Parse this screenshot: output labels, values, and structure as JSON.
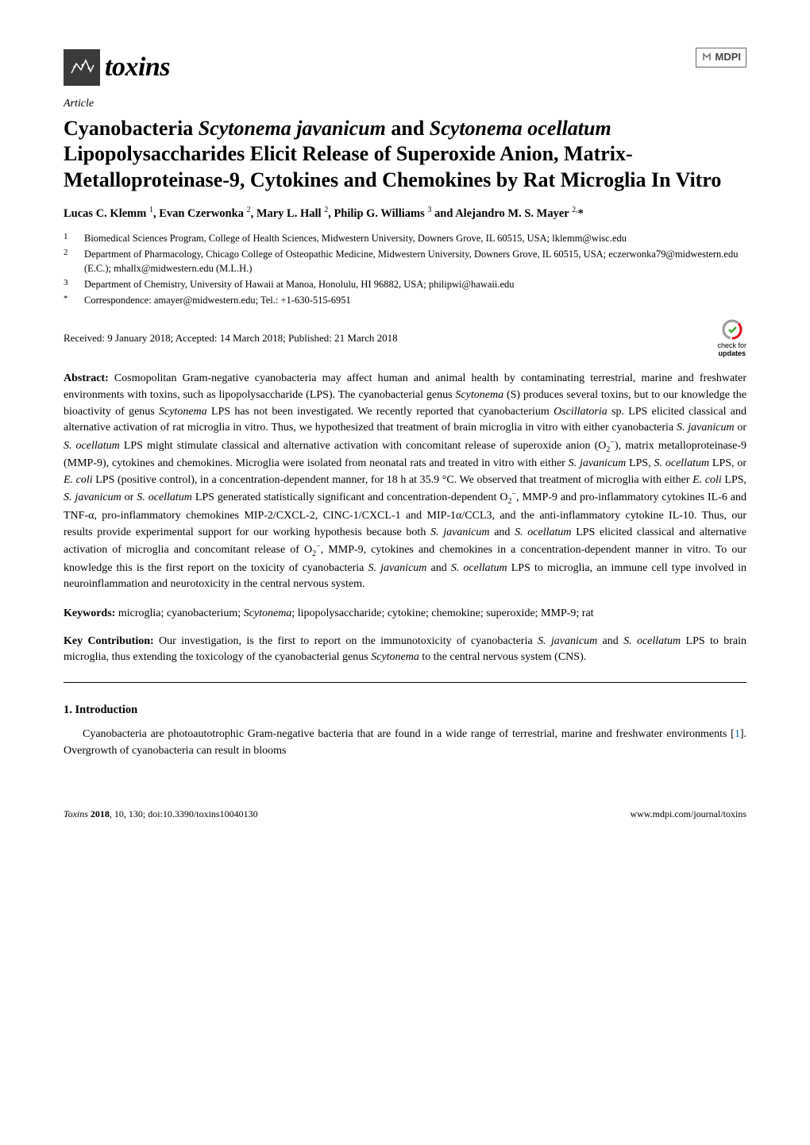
{
  "journal": {
    "name": "toxins",
    "logo_bg": "#3a3a3a",
    "logo_accent": "#ffffff"
  },
  "publisher_logo_text": "MDPI",
  "article_type": "Article",
  "title_parts": {
    "p1": "Cyanobacteria ",
    "sp1": "Scytonema javanicum",
    "p2": " and ",
    "sp2": "Scytonema ocellatum",
    "p3": " Lipopolysaccharides Elicit Release of Superoxide Anion, Matrix-Metalloproteinase-9, Cytokines and Chemokines by Rat Microglia In Vitro"
  },
  "authors_html": "Lucas C. Klemm <sup>1</sup>, Evan Czerwonka <sup>2</sup>, Mary L. Hall <sup>2</sup>, Philip G. Williams <sup>3</sup> and Alejandro M. S. Mayer <sup>2,</sup>*",
  "affiliations": [
    {
      "num": "1",
      "text": "Biomedical Sciences Program, College of Health Sciences, Midwestern University, Downers Grove, IL 60515, USA; lklemm@wisc.edu"
    },
    {
      "num": "2",
      "text": "Department of Pharmacology, Chicago College of Osteopathic Medicine, Midwestern University, Downers Grove, IL 60515, USA; eczerwonka79@midwestern.edu (E.C.); mhallx@midwestern.edu (M.L.H.)"
    },
    {
      "num": "3",
      "text": "Department of Chemistry, University of Hawaii at Manoa, Honolulu, HI 96882, USA; philipwi@hawaii.edu"
    },
    {
      "num": "*",
      "text": "Correspondence: amayer@midwestern.edu; Tel.: +1-630-515-6951"
    }
  ],
  "dates": "Received: 9 January 2018; Accepted: 14 March 2018; Published: 21 March 2018",
  "check_updates": {
    "line1": "check for",
    "line2": "updates",
    "ring_color": "#e30613",
    "arrow_color": "#3ba935"
  },
  "abstract": {
    "label": "Abstract:",
    "text": " Cosmopolitan Gram-negative cyanobacteria may affect human and animal health by contaminating terrestrial, marine and freshwater environments with toxins, such as lipopolysaccharide (LPS). The cyanobacterial genus Scytonema (S) produces several toxins, but to our knowledge the bioactivity of genus Scytonema LPS has not been investigated. We recently reported that cyanobacterium Oscillatoria sp. LPS elicited classical and alternative activation of rat microglia in vitro. Thus, we hypothesized that treatment of brain microglia in vitro with either cyanobacteria S. javanicum or S. ocellatum LPS might stimulate classical and alternative activation with concomitant release of superoxide anion (O2−), matrix metalloproteinase-9 (MMP-9), cytokines and chemokines. Microglia were isolated from neonatal rats and treated in vitro with either S. javanicum LPS, S. ocellatum LPS, or E. coli LPS (positive control), in a concentration-dependent manner, for 18 h at 35.9 °C. We observed that treatment of microglia with either E. coli LPS, S. javanicum or S. ocellatum LPS generated statistically significant and concentration-dependent O2−, MMP-9 and pro-inflammatory cytokines IL-6 and TNF-α, pro-inflammatory chemokines MIP-2/CXCL-2, CINC-1/CXCL-1 and MIP-1α/CCL3, and the anti-inflammatory cytokine IL-10. Thus, our results provide experimental support for our working hypothesis because both S. javanicum and S. ocellatum LPS elicited classical and alternative activation of microglia and concomitant release of O2−, MMP-9, cytokines and chemokines in a concentration-dependent manner in vitro. To our knowledge this is the first report on the toxicity of cyanobacteria S. javanicum and S. ocellatum LPS to microglia, an immune cell type involved in neuroinflammation and neurotoxicity in the central nervous system."
  },
  "keywords": {
    "label": "Keywords:",
    "text": " microglia; cyanobacterium; Scytonema; lipopolysaccharide; cytokine; chemokine; superoxide; MMP-9; rat"
  },
  "keycontrib": {
    "label": "Key Contribution:",
    "text_before": " Our investigation, is the first to report on the immunotoxicity of cyanobacteria ",
    "sp1": "S. javanicum",
    "mid1": " and ",
    "sp2": "S. ocellatum",
    "mid2": " LPS to brain microglia, thus extending the toxicology of the cyanobacterial genus ",
    "sp3": "Scytonema",
    "text_after": " to the central nervous system (CNS)."
  },
  "section1": {
    "heading": "1. Introduction",
    "para1_before": "Cyanobacteria are photoautotrophic Gram-negative bacteria that are found in a wide range of terrestrial, marine and freshwater environments [",
    "ref1": "1",
    "para1_after": "]. Overgrowth of cyanobacteria can result in blooms"
  },
  "footer": {
    "left_italic": "Toxins ",
    "left_bold": "2018",
    "left_rest": ", 10, 130; doi:10.3390/toxins10040130",
    "right": "www.mdpi.com/journal/toxins"
  },
  "colors": {
    "text": "#000000",
    "link": "#0070c0",
    "background": "#ffffff"
  },
  "typography": {
    "body_font": "Palatino Linotype, serif",
    "body_size_pt": 10.5,
    "title_size_pt": 19,
    "journal_name_size_pt": 25
  }
}
